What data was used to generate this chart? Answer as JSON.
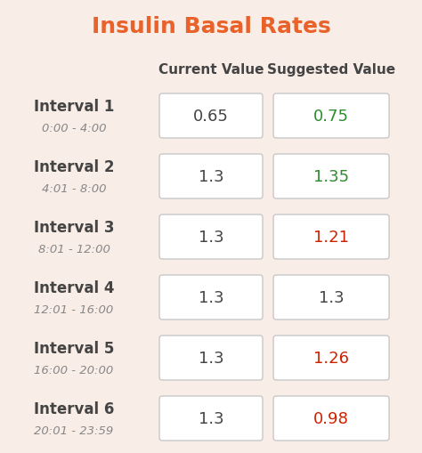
{
  "title": "Insulin Basal Rates",
  "title_color": "#E8622A",
  "background_color": "#F9EDE8",
  "col_header_current": "Current Value",
  "col_header_suggested": "Suggested Value",
  "col_header_color": "#444444",
  "intervals": [
    {
      "label": "Interval 1",
      "time": "0:00 - 4:00",
      "current": "0.65",
      "suggested": "0.75",
      "suggested_color": "#2E8B2E"
    },
    {
      "label": "Interval 2",
      "time": "4:01 - 8:00",
      "current": "1.3",
      "suggested": "1.35",
      "suggested_color": "#2E8B2E"
    },
    {
      "label": "Interval 3",
      "time": "8:01 - 12:00",
      "current": "1.3",
      "suggested": "1.21",
      "suggested_color": "#CC2200"
    },
    {
      "label": "Interval 4",
      "time": "12:01 - 16:00",
      "current": "1.3",
      "suggested": "1.3",
      "suggested_color": "#444444"
    },
    {
      "label": "Interval 5",
      "time": "16:00 - 20:00",
      "current": "1.3",
      "suggested": "1.26",
      "suggested_color": "#CC2200"
    },
    {
      "label": "Interval 6",
      "time": "20:01 - 23:59",
      "current": "1.3",
      "suggested": "0.98",
      "suggested_color": "#CC2200"
    }
  ],
  "box_face_color": "#FFFFFF",
  "box_edge_color": "#C8C8C8",
  "current_text_color": "#444444",
  "interval_label_color": "#444444",
  "time_label_color": "#888888",
  "figw": 4.74,
  "figh": 5.09,
  "dpi": 100
}
